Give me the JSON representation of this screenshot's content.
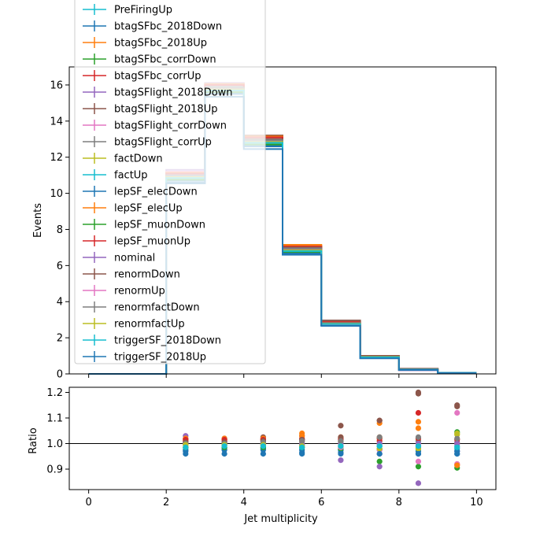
{
  "chart_data": [
    {
      "type": "line",
      "drawstyle": "steps",
      "xlabel": "",
      "ylabel": "Events",
      "xlim": [
        -0.5,
        10.5
      ],
      "ylim": [
        0,
        17
      ],
      "xticks": [
        0,
        2,
        4,
        6,
        8,
        10
      ],
      "x_tick_labels_visible": false,
      "yticks": [
        0,
        2,
        4,
        6,
        8,
        10,
        12,
        14,
        16
      ],
      "legend_position": "upper-left",
      "bin_edges": [
        0,
        1,
        2,
        3,
        4,
        5,
        6,
        7,
        8,
        9,
        10
      ],
      "series": [
        {
          "name": "PreFiringUp",
          "color": "#17becf",
          "values": [
            0,
            0,
            10.9,
            15.7,
            12.8,
            6.85,
            2.75,
            0.92,
            0.24,
            0.06
          ]
        },
        {
          "name": "btagSFbc_2018Down",
          "color": "#1f77b4",
          "values": [
            0,
            0,
            10.6,
            15.5,
            12.6,
            6.65,
            2.68,
            0.88,
            0.23,
            0.055
          ]
        },
        {
          "name": "btagSFbc_2018Up",
          "color": "#ff7f0e",
          "values": [
            0,
            0,
            11.2,
            16.1,
            13.2,
            7.15,
            2.92,
            0.97,
            0.26,
            0.06
          ]
        },
        {
          "name": "btagSFbc_corrDown",
          "color": "#2ca02c",
          "values": [
            0,
            0,
            10.8,
            15.6,
            12.7,
            6.8,
            2.72,
            0.88,
            0.21,
            0.055
          ]
        },
        {
          "name": "btagSFbc_corrUp",
          "color": "#d62728",
          "values": [
            0,
            0,
            11.1,
            16.0,
            13.1,
            7.05,
            2.85,
            0.94,
            0.27,
            0.06
          ]
        },
        {
          "name": "btagSFlight_2018Down",
          "color": "#9467bd",
          "values": [
            0,
            0,
            11.3,
            16.1,
            13.15,
            7.0,
            2.7,
            0.87,
            0.2,
            0.055
          ]
        },
        {
          "name": "btagSFlight_2018Up",
          "color": "#8c564b",
          "values": [
            0,
            0,
            11.0,
            15.9,
            13.2,
            7.05,
            2.95,
            0.98,
            0.29,
            0.065
          ]
        },
        {
          "name": "btagSFlight_corrDown",
          "color": "#e377c2",
          "values": [
            0,
            0,
            11.2,
            16.0,
            13.1,
            7.0,
            2.75,
            0.9,
            0.22,
            0.055
          ]
        },
        {
          "name": "btagSFlight_corrUp",
          "color": "#7f7f7f",
          "values": [
            0,
            0,
            11.0,
            15.9,
            13.0,
            6.95,
            2.8,
            0.93,
            0.24,
            0.06
          ]
        },
        {
          "name": "factDown",
          "color": "#bcbd22",
          "values": [
            0,
            0,
            10.9,
            15.8,
            12.9,
            6.9,
            2.8,
            0.95,
            0.245,
            0.062
          ]
        },
        {
          "name": "factUp",
          "color": "#17becf",
          "values": [
            0,
            0,
            10.95,
            15.75,
            12.85,
            6.85,
            2.75,
            0.92,
            0.235,
            0.059
          ]
        },
        {
          "name": "lepSF_elecDown",
          "color": "#1f77b4",
          "values": [
            0,
            0,
            10.7,
            15.55,
            12.65,
            6.7,
            2.7,
            0.9,
            0.23,
            0.058
          ]
        },
        {
          "name": "lepSF_elecUp",
          "color": "#ff7f0e",
          "values": [
            0,
            0,
            11.15,
            16.05,
            13.15,
            7.1,
            2.9,
            0.96,
            0.255,
            0.061
          ]
        },
        {
          "name": "lepSF_muonDown",
          "color": "#2ca02c",
          "values": [
            0,
            0,
            10.75,
            15.6,
            12.7,
            6.75,
            2.72,
            0.91,
            0.235,
            0.058
          ]
        },
        {
          "name": "lepSF_muonUp",
          "color": "#d62728",
          "values": [
            0,
            0,
            11.1,
            16.0,
            13.1,
            7.05,
            2.87,
            0.95,
            0.25,
            0.061
          ]
        },
        {
          "name": "nominal",
          "color": "#9467bd",
          "values": [
            0,
            0,
            10.95,
            15.8,
            12.9,
            6.9,
            2.8,
            0.93,
            0.24,
            0.06
          ]
        },
        {
          "name": "renormDown",
          "color": "#8c564b",
          "values": [
            0,
            0,
            11.0,
            15.85,
            13.0,
            7.0,
            2.96,
            1.0,
            0.285,
            0.068
          ]
        },
        {
          "name": "renormUp",
          "color": "#e377c2",
          "values": [
            0,
            0,
            10.9,
            15.75,
            12.85,
            6.85,
            2.75,
            0.9,
            0.235,
            0.067
          ]
        },
        {
          "name": "renormfactDown",
          "color": "#7f7f7f",
          "values": [
            0,
            0,
            11.0,
            15.85,
            12.95,
            6.95,
            2.82,
            0.95,
            0.245,
            0.061
          ]
        },
        {
          "name": "renormfactUp",
          "color": "#bcbd22",
          "values": [
            0,
            0,
            10.9,
            15.75,
            12.85,
            6.85,
            2.78,
            0.94,
            0.24,
            0.062
          ]
        },
        {
          "name": "triggerSF_2018Down",
          "color": "#17becf",
          "values": [
            0,
            0,
            10.85,
            15.7,
            12.8,
            6.8,
            2.76,
            0.92,
            0.238,
            0.059
          ]
        },
        {
          "name": "triggerSF_2018Up",
          "color": "#1f77b4",
          "values": [
            0,
            0,
            10.55,
            15.35,
            12.45,
            6.6,
            2.66,
            0.86,
            0.22,
            0.056
          ]
        }
      ]
    },
    {
      "type": "scatter",
      "xlabel": "Jet multiplicity",
      "ylabel": "Ratio",
      "xlim": [
        -0.5,
        10.5
      ],
      "ylim": [
        0.82,
        1.22
      ],
      "xticks": [
        0,
        2,
        4,
        6,
        8,
        10
      ],
      "yticks": [
        0.9,
        1.0,
        1.1,
        1.2
      ],
      "y_tick_labels": [
        "0.9",
        "1.0",
        "1.1",
        "1.2"
      ],
      "reference_line": 1.0,
      "x": [
        2.5,
        3.5,
        4.5,
        5.5,
        6.5,
        7.5,
        8.5,
        9.5
      ],
      "series": [
        {
          "name": "PreFiringUp",
          "color": "#17becf",
          "values": [
            0.995,
            0.995,
            0.995,
            0.995,
            0.99,
            0.99,
            0.99,
            0.99
          ]
        },
        {
          "name": "btagSFbc_2018Down",
          "color": "#1f77b4",
          "values": [
            0.97,
            0.975,
            0.975,
            0.965,
            0.965,
            0.96,
            0.96,
            0.96
          ]
        },
        {
          "name": "btagSFbc_2018Up",
          "color": "#ff7f0e",
          "values": [
            1.02,
            1.015,
            1.02,
            1.04,
            1.02,
            1.025,
            1.085,
            0.92
          ]
        },
        {
          "name": "btagSFbc_corrDown",
          "color": "#2ca02c",
          "values": [
            0.985,
            0.985,
            0.985,
            0.985,
            0.975,
            0.93,
            0.91,
            0.905
          ]
        },
        {
          "name": "btagSFbc_corrUp",
          "color": "#d62728",
          "values": [
            1.01,
            1.01,
            1.015,
            1.02,
            1.015,
            1.01,
            1.12,
            1.0
          ]
        },
        {
          "name": "btagSFlight_2018Down",
          "color": "#9467bd",
          "values": [
            1.03,
            1.02,
            1.02,
            1.015,
            0.935,
            0.91,
            0.845,
            0.97
          ]
        },
        {
          "name": "btagSFlight_2018Up",
          "color": "#8c564b",
          "values": [
            1.0,
            1.005,
            1.025,
            1.03,
            1.07,
            1.09,
            1.2,
            1.15
          ]
        },
        {
          "name": "btagSFlight_corrDown",
          "color": "#e377c2",
          "values": [
            1.02,
            1.01,
            1.015,
            1.01,
            0.98,
            0.96,
            0.93,
            0.92
          ]
        },
        {
          "name": "btagSFlight_corrUp",
          "color": "#7f7f7f",
          "values": [
            1.005,
            1.005,
            1.01,
            1.01,
            1.005,
            1.0,
            1.01,
            1.005
          ]
        },
        {
          "name": "factDown",
          "color": "#bcbd22",
          "values": [
            1.0,
            1.0,
            1.0,
            1.005,
            1.01,
            1.02,
            1.02,
            1.035
          ]
        },
        {
          "name": "factUp",
          "color": "#17becf",
          "values": [
            1.0,
            0.995,
            1.0,
            0.995,
            0.985,
            0.99,
            0.985,
            0.98
          ]
        },
        {
          "name": "lepSF_elecDown",
          "color": "#1f77b4",
          "values": [
            0.975,
            0.98,
            0.98,
            0.975,
            0.975,
            0.975,
            0.97,
            0.97
          ]
        },
        {
          "name": "lepSF_elecUp",
          "color": "#ff7f0e",
          "values": [
            1.02,
            1.02,
            1.02,
            1.03,
            1.025,
            1.08,
            1.06,
            0.915
          ]
        },
        {
          "name": "lepSF_muonDown",
          "color": "#2ca02c",
          "values": [
            0.985,
            0.985,
            0.985,
            0.985,
            0.98,
            0.98,
            0.98,
            1.045
          ]
        },
        {
          "name": "lepSF_muonUp",
          "color": "#d62728",
          "values": [
            1.015,
            1.015,
            1.015,
            1.015,
            1.02,
            1.02,
            1.02,
            1.015
          ]
        },
        {
          "name": "nominal",
          "color": "#9467bd",
          "values": [
            1.0,
            1.0,
            1.0,
            1.0,
            1.0,
            1.0,
            1.0,
            1.0
          ]
        },
        {
          "name": "renormDown",
          "color": "#8c564b",
          "values": [
            1.005,
            1.005,
            1.01,
            1.015,
            1.025,
            1.09,
            1.195,
            1.145
          ]
        },
        {
          "name": "renormUp",
          "color": "#e377c2",
          "values": [
            0.995,
            0.995,
            0.995,
            0.99,
            0.985,
            0.975,
            0.99,
            1.12
          ]
        },
        {
          "name": "renormfactDown",
          "color": "#7f7f7f",
          "values": [
            1.0,
            1.0,
            1.005,
            1.01,
            1.01,
            1.025,
            1.025,
            1.02
          ]
        },
        {
          "name": "renormfactUp",
          "color": "#bcbd22",
          "values": [
            0.995,
            0.995,
            0.995,
            0.99,
            0.99,
            0.98,
            0.98,
            1.04
          ]
        },
        {
          "name": "triggerSF_2018Down",
          "color": "#17becf",
          "values": [
            0.985,
            0.99,
            0.99,
            0.985,
            0.99,
            0.99,
            0.99,
            0.985
          ]
        },
        {
          "name": "triggerSF_2018Up",
          "color": "#1f77b4",
          "values": [
            0.96,
            0.96,
            0.96,
            0.96,
            0.96,
            0.96,
            0.96,
            0.96
          ]
        }
      ]
    }
  ]
}
